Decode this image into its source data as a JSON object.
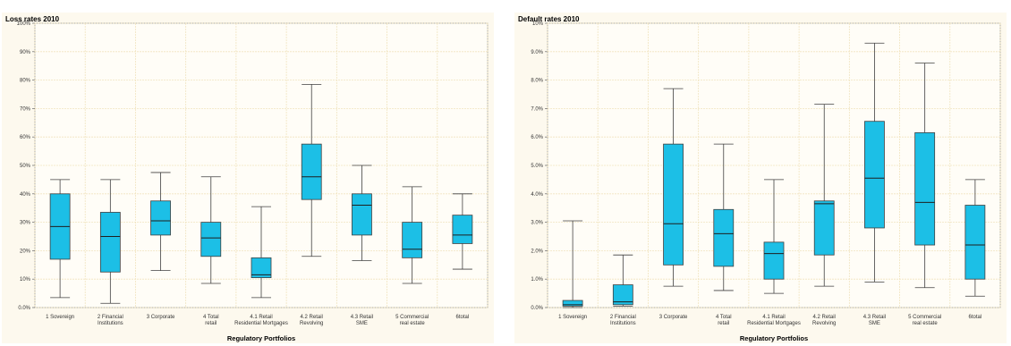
{
  "colors": {
    "box_fill": "#1cbfe6",
    "box_stroke": "#404040",
    "grid": "#f1e4bf",
    "plot_bg": "#fffdf7",
    "panel_bg": "#fdf9ee"
  },
  "chart_data": [
    {
      "type": "boxplot",
      "title": "Loss rates 2010",
      "xlabel": "Regulatory Portfolios",
      "ylabel": "",
      "ylim": [
        0,
        100
      ],
      "yticks": [
        0,
        10,
        20,
        30,
        40,
        50,
        60,
        70,
        80,
        90,
        100
      ],
      "ytick_labels": [
        "0.0%",
        "10%",
        "20%",
        "30%",
        "40%",
        "50%",
        "60%",
        "70%",
        "80%",
        "90%",
        "100%"
      ],
      "categories": [
        [
          "1 Sovereign"
        ],
        [
          "2 Financial",
          "Institutions"
        ],
        [
          "3 Corporate"
        ],
        [
          "4 Total",
          "retail"
        ],
        [
          "4.1 Retail",
          "Residential Mortgages"
        ],
        [
          "4.2 Retail",
          "Revolving"
        ],
        [
          "4.3 Retail",
          "SME"
        ],
        [
          "5 Commercial",
          "real estate"
        ],
        [
          "6total"
        ]
      ],
      "boxes": [
        {
          "min": 3.5,
          "q1": 17,
          "median": 28.5,
          "q3": 40,
          "max": 45
        },
        {
          "min": 1.5,
          "q1": 12.5,
          "median": 25,
          "q3": 33.5,
          "max": 45
        },
        {
          "min": 13,
          "q1": 25.5,
          "median": 30.5,
          "q3": 37.5,
          "max": 47.5
        },
        {
          "min": 8.5,
          "q1": 18,
          "median": 24.5,
          "q3": 30,
          "max": 46
        },
        {
          "min": 3.5,
          "q1": 10.5,
          "median": 11.5,
          "q3": 17.5,
          "max": 35.5
        },
        {
          "min": 18,
          "q1": 38,
          "median": 46,
          "q3": 57.5,
          "max": 78.5
        },
        {
          "min": 16.5,
          "q1": 25.5,
          "median": 36,
          "q3": 40,
          "max": 50
        },
        {
          "min": 8.5,
          "q1": 17.5,
          "median": 20.5,
          "q3": 30,
          "max": 42.5
        },
        {
          "min": 13.5,
          "q1": 22.5,
          "median": 25.5,
          "q3": 32.5,
          "max": 40
        }
      ],
      "grid": true
    },
    {
      "type": "boxplot",
      "title": "Default rates 2010",
      "xlabel": "Regulatory Portfolios",
      "ylabel": "",
      "ylim": [
        0,
        10
      ],
      "yticks": [
        0,
        1,
        2,
        3,
        4,
        5,
        6,
        7,
        8,
        9,
        10
      ],
      "ytick_labels": [
        "0.0%",
        "1.0%",
        "2.0%",
        "3.0%",
        "4.0%",
        "5.0%",
        "6.0%",
        "7.0%",
        "8.0%",
        "9.0%",
        "10%"
      ],
      "categories": [
        [
          "1 Sovereign"
        ],
        [
          "2 Financial",
          "Institutions"
        ],
        [
          "3 Corporate"
        ],
        [
          "4 Total",
          "retail"
        ],
        [
          "4.1 Retail",
          "Residential Mortgages"
        ],
        [
          "4.2 Retail",
          "Revolving"
        ],
        [
          "4.3 Retail",
          "SME"
        ],
        [
          "5 Commercial",
          "real estate"
        ],
        [
          "6total"
        ]
      ],
      "boxes": [
        {
          "min": 0,
          "q1": 0.05,
          "median": 0.1,
          "q3": 0.25,
          "max": 3.05
        },
        {
          "min": 0.05,
          "q1": 0.1,
          "median": 0.2,
          "q3": 0.8,
          "max": 1.85
        },
        {
          "min": 0.75,
          "q1": 1.5,
          "median": 2.95,
          "q3": 5.75,
          "max": 7.7
        },
        {
          "min": 0.6,
          "q1": 1.45,
          "median": 2.6,
          "q3": 3.45,
          "max": 5.75
        },
        {
          "min": 0.5,
          "q1": 1.0,
          "median": 1.9,
          "q3": 2.3,
          "max": 4.5
        },
        {
          "min": 0.75,
          "q1": 1.85,
          "median": 3.65,
          "q3": 3.75,
          "max": 7.15
        },
        {
          "min": 0.9,
          "q1": 2.8,
          "median": 4.55,
          "q3": 6.55,
          "max": 9.3
        },
        {
          "min": 0.7,
          "q1": 2.2,
          "median": 3.7,
          "q3": 6.15,
          "max": 8.6
        },
        {
          "min": 0.4,
          "q1": 1.0,
          "median": 2.2,
          "q3": 3.6,
          "max": 4.5
        }
      ],
      "grid": true
    }
  ]
}
